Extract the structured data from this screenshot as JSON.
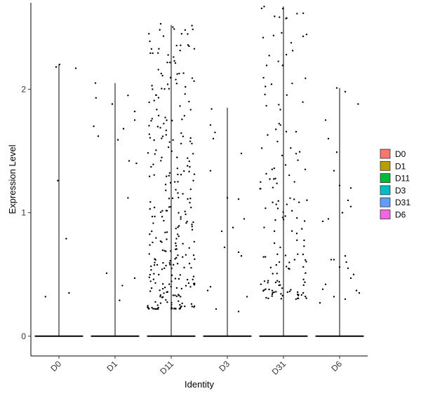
{
  "chart_data": {
    "type": "violin",
    "xlabel": "Identity",
    "ylabel": "Expression Level",
    "categories": [
      "D0",
      "D1",
      "D11",
      "D3",
      "D31",
      "D6"
    ],
    "ylim": [
      -0.16,
      2.7
    ],
    "yticks": [
      0,
      1,
      2
    ],
    "grid": false,
    "legend": {
      "position": "right",
      "entries": [
        {
          "label": "D0",
          "color": "#F8766D"
        },
        {
          "label": "D1",
          "color": "#B79F00"
        },
        {
          "label": "D11",
          "color": "#00BA38"
        },
        {
          "label": "D3",
          "color": "#00BFC4"
        },
        {
          "label": "D31",
          "color": "#619CFF"
        },
        {
          "label": "D6",
          "color": "#F564E3"
        }
      ]
    },
    "series": [
      {
        "name": "D0",
        "max": 2.2,
        "points": [
          [
            -0.05,
            2.18
          ],
          [
            0.01,
            2.2
          ],
          [
            0.3,
            2.17
          ],
          [
            -0.02,
            1.26
          ],
          [
            0.13,
            0.79
          ],
          [
            0.18,
            0.35
          ],
          [
            -0.24,
            0.32
          ]
        ]
      },
      {
        "name": "D1",
        "max": 2.05,
        "points": [
          [
            -0.35,
            2.05
          ],
          [
            -0.34,
            1.93
          ],
          [
            -0.05,
            1.88
          ],
          [
            0.23,
            1.95
          ],
          [
            0.35,
            1.82
          ],
          [
            0.35,
            1.75
          ],
          [
            -0.38,
            1.7
          ],
          [
            0.15,
            1.68
          ],
          [
            -0.3,
            1.62
          ],
          [
            0.05,
            1.59
          ],
          [
            0.25,
            1.42
          ],
          [
            0.38,
            1.4
          ],
          [
            0.23,
            1.12
          ],
          [
            -0.15,
            0.51
          ],
          [
            0.13,
            0.41
          ],
          [
            0.35,
            0.47
          ],
          [
            0.08,
            0.29
          ]
        ]
      },
      {
        "name": "D11",
        "max": 2.52,
        "seed": 11,
        "count": 290,
        "range": [
          0.22,
          2.53
        ],
        "spread": 0.42
      },
      {
        "name": "D3",
        "max": 1.85,
        "points": [
          [
            -0.28,
            1.84
          ],
          [
            -0.3,
            1.71
          ],
          [
            -0.22,
            1.65
          ],
          [
            -0.25,
            1.6
          ],
          [
            0.25,
            1.48
          ],
          [
            -0.3,
            1.34
          ],
          [
            0.0,
            1.12
          ],
          [
            0.2,
            1.11
          ],
          [
            -0.1,
            0.85
          ],
          [
            0.1,
            0.88
          ],
          [
            0.2,
            0.68
          ],
          [
            0.25,
            0.65
          ],
          [
            -0.05,
            0.72
          ],
          [
            0.3,
            0.95
          ],
          [
            -0.35,
            0.37
          ],
          [
            -0.3,
            0.4
          ],
          [
            -0.2,
            0.22
          ],
          [
            0.2,
            0.2
          ],
          [
            0.35,
            0.32
          ]
        ]
      },
      {
        "name": "D31",
        "max": 2.67,
        "seed": 31,
        "count": 150,
        "range": [
          0.3,
          2.67
        ],
        "spread": 0.42
      },
      {
        "name": "D6",
        "max": 2.01,
        "points": [
          [
            -0.05,
            2.01
          ],
          [
            0.1,
            1.98
          ],
          [
            0.33,
            1.88
          ],
          [
            -0.25,
            1.75
          ],
          [
            -0.2,
            1.6
          ],
          [
            -0.05,
            1.49
          ],
          [
            -0.1,
            1.34
          ],
          [
            0.0,
            1.22
          ],
          [
            0.2,
            1.2
          ],
          [
            0.15,
            1.1
          ],
          [
            0.2,
            1.05
          ],
          [
            0.05,
            1.0
          ],
          [
            -0.3,
            0.93
          ],
          [
            -0.2,
            0.95
          ],
          [
            0.1,
            0.65
          ],
          [
            0.12,
            0.6
          ],
          [
            0.0,
            0.56
          ],
          [
            -0.1,
            0.62
          ],
          [
            -0.15,
            0.62
          ],
          [
            0.15,
            0.55
          ],
          [
            0.25,
            0.5
          ],
          [
            0.2,
            0.47
          ],
          [
            0.3,
            0.37
          ],
          [
            0.35,
            0.35
          ],
          [
            -0.25,
            0.42
          ],
          [
            -0.3,
            0.38
          ],
          [
            -0.1,
            0.32
          ],
          [
            0.1,
            0.3
          ],
          [
            -0.35,
            0.27
          ]
        ]
      }
    ]
  }
}
